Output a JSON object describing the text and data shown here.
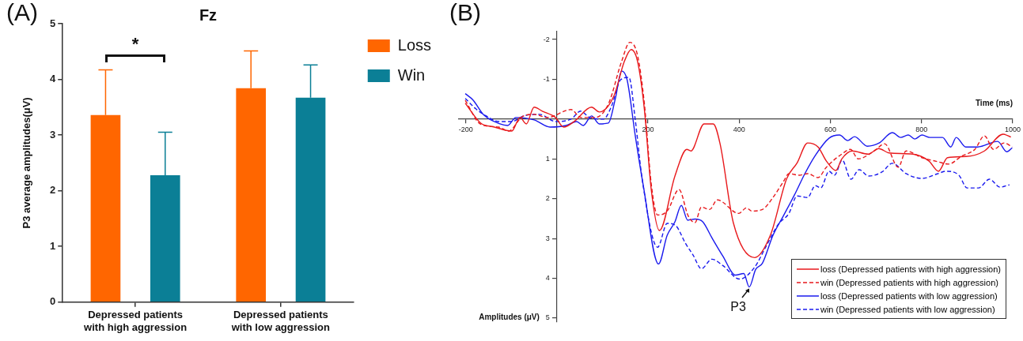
{
  "chart_data": [
    {
      "type": "bar",
      "title": "Fz",
      "ylabel": "P3 average amplitudes(μV)",
      "categories": [
        "Depressed patients with high aggression",
        "Depressed patients with low aggression"
      ],
      "series": [
        {
          "name": "Loss",
          "color": "#ff6600",
          "values": [
            3.36,
            3.84
          ],
          "errors": [
            [
              3.36,
              4.17
            ],
            [
              3.84,
              4.51
            ]
          ]
        },
        {
          "name": "Win",
          "color": "#0b7f96",
          "values": [
            2.28,
            3.67
          ],
          "errors": [
            [
              2.28,
              3.05
            ],
            [
              3.67,
              4.26
            ]
          ]
        }
      ],
      "ylim": [
        0,
        5
      ],
      "yticks": [
        0,
        1,
        2,
        3,
        4,
        5
      ],
      "grid": false,
      "legend": "top right",
      "annotations": [
        "(A)",
        "*"
      ]
    },
    {
      "type": "line",
      "xlabel": "Time (ms)",
      "ylabel": "Amplitudes (μV)",
      "xlim": [
        -215,
        1000
      ],
      "xticks": [
        -200,
        200,
        400,
        600,
        800,
        1000
      ],
      "ylim": [
        5.1,
        -2.2
      ],
      "yticks": [
        -2,
        -1,
        1,
        2,
        3,
        4,
        5
      ],
      "grid": false,
      "legend": "bottom right",
      "series": [
        {
          "name": "loss (Depressed patients with high aggression)",
          "color": "#e8191c",
          "line_style": "solid",
          "x": [
            -201,
            -167,
            -137,
            -99,
            -81,
            -67,
            -50,
            -32,
            -3,
            15,
            38,
            76,
            93,
            125,
            148,
            163,
            177,
            192,
            207,
            225,
            259,
            285,
            294,
            323,
            343,
            358,
            387,
            434,
            469,
            504,
            527,
            550,
            573,
            591,
            612,
            625,
            648,
            683,
            706,
            729,
            781,
            816,
            837,
            857,
            897,
            938,
            979,
            996
          ],
          "values": [
            -0.4,
            0.1,
            0.2,
            0.3,
            -0.04,
            0.12,
            -0.3,
            -0.2,
            -0.04,
            0.2,
            0.06,
            -0.3,
            -0.18,
            -0.58,
            -1.45,
            -1.75,
            -1.45,
            -0.24,
            1.77,
            2.8,
            1.43,
            0.76,
            0.8,
            0.12,
            0.12,
            0.62,
            2.6,
            3.48,
            2.9,
            1.5,
            1.1,
            0.6,
            0.7,
            1.05,
            1.29,
            1.0,
            0.8,
            0.88,
            0.74,
            0.85,
            0.88,
            1.05,
            1.31,
            0.97,
            0.94,
            0.8,
            0.38,
            0.45
          ]
        },
        {
          "name": "win (Depressed patients with high aggression)",
          "color": "#e8191c",
          "line_style": "dashed",
          "x": [
            -201,
            -167,
            -128,
            -106,
            -76,
            -50,
            -21,
            31,
            53,
            84,
            113,
            142,
            160,
            177,
            192,
            207,
            221,
            242,
            268,
            288,
            303,
            317,
            335,
            352,
            399,
            416,
            427,
            451,
            474,
            497,
            509,
            532,
            550,
            573,
            591,
            626,
            644,
            661,
            696,
            719,
            749,
            766,
            801,
            836,
            859,
            888,
            917,
            938,
            958,
            981,
            999
          ],
          "values": [
            -0.47,
            0.13,
            0.2,
            0.3,
            -0.06,
            -0.12,
            -0.04,
            -0.24,
            -0.04,
            -0.04,
            -0.38,
            -1.45,
            -1.93,
            -1.6,
            -0.38,
            1.63,
            2.41,
            2.31,
            1.77,
            2.43,
            2.6,
            2.21,
            2.27,
            2.03,
            2.37,
            2.23,
            2.31,
            2.27,
            1.97,
            1.57,
            1.37,
            1.41,
            1.37,
            1.47,
            1.21,
            0.87,
            0.76,
            1.0,
            0.8,
            0.62,
            1.21,
            0.8,
            0.97,
            1.07,
            1.13,
            0.93,
            0.76,
            0.42,
            0.76,
            0.6,
            0.7
          ]
        },
        {
          "name": "loss (Depressed patients with low aggression)",
          "color": "#1a1aee",
          "line_style": "solid",
          "x": [
            -201,
            -184,
            -160,
            -125,
            -108,
            -90,
            -50,
            -15,
            20,
            43,
            58,
            76,
            93,
            113,
            128,
            142,
            154,
            172,
            189,
            223,
            242,
            259,
            273,
            287,
            303,
            320,
            340,
            364,
            392,
            410,
            422,
            436,
            451,
            474,
            497,
            521,
            544,
            567,
            597,
            620,
            638,
            653,
            681,
            707,
            736,
            754,
            771,
            785,
            801,
            818,
            846,
            864,
            876,
            897,
            923,
            967,
            987,
            999
          ],
          "values": [
            -0.64,
            -0.48,
            -0.1,
            0.12,
            0.16,
            -0.04,
            0.02,
            0.2,
            0.16,
            0.06,
            0.16,
            -0.08,
            0.12,
            0.1,
            -0.5,
            -1.21,
            -0.99,
            0.42,
            1.63,
            3.64,
            2.92,
            2.58,
            2.17,
            2.54,
            2.51,
            2.58,
            2.98,
            3.44,
            3.92,
            3.88,
            4.22,
            3.78,
            3.62,
            2.92,
            2.43,
            1.91,
            1.37,
            0.91,
            0.48,
            0.4,
            0.54,
            0.44,
            0.68,
            0.6,
            0.34,
            0.46,
            0.4,
            0.5,
            0.4,
            0.46,
            0.46,
            0.7,
            0.46,
            0.7,
            0.7,
            0.56,
            0.82,
            0.72
          ]
        },
        {
          "name": "win (Depressed patients with low aggression)",
          "color": "#1a1aee",
          "line_style": "dashed",
          "x": [
            -201,
            -178,
            -155,
            -128,
            -99,
            -73,
            -38,
            -3,
            31,
            52,
            72,
            102,
            119,
            140,
            158,
            172,
            187,
            221,
            242,
            261,
            282,
            299,
            317,
            340,
            364,
            401,
            434,
            457,
            486,
            509,
            527,
            550,
            567,
            579,
            597,
            609,
            626,
            645,
            663,
            684,
            713,
            736,
            766,
            801,
            836,
            853,
            882,
            900,
            925,
            949,
            972,
            993
          ],
          "values": [
            -0.52,
            -0.26,
            -0.08,
            0.06,
            0.06,
            -0.08,
            -0.12,
            0.06,
            0,
            -0.2,
            -0.04,
            0,
            -0.3,
            -0.99,
            -1.05,
            0.02,
            1.5,
            3.22,
            2.62,
            2.68,
            3.12,
            3.42,
            3.76,
            3.52,
            3.68,
            4.02,
            3.72,
            3.24,
            2.64,
            2.37,
            1.93,
            1.97,
            1.67,
            1.73,
            1.31,
            1.41,
            1.03,
            1.51,
            1.27,
            1.43,
            1.33,
            1.11,
            1.37,
            1.49,
            1.37,
            1.31,
            1.41,
            1.73,
            1.73,
            1.51,
            1.71,
            1.65
          ]
        }
      ],
      "annotations": [
        "(B)",
        {
          "text": "P3",
          "x": 422,
          "y": 4.22
        }
      ]
    }
  ]
}
